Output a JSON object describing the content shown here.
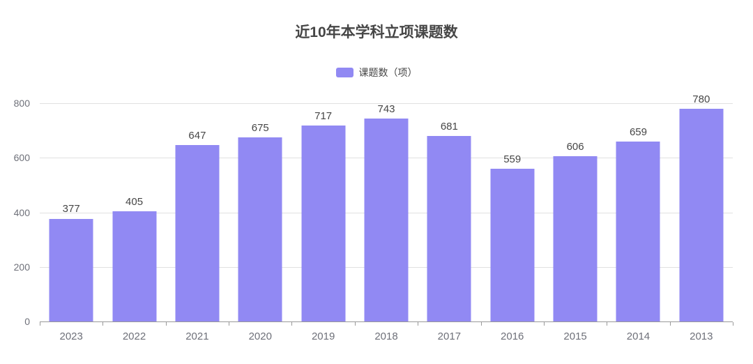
{
  "chart_data": {
    "type": "bar",
    "title": "近10年本学科立项课题数",
    "legend": {
      "label": "课题数（项）",
      "position": "top"
    },
    "categories": [
      "2023",
      "2022",
      "2021",
      "2020",
      "2019",
      "2018",
      "2017",
      "2016",
      "2015",
      "2014",
      "2013"
    ],
    "series": [
      {
        "name": "课题数（项）",
        "values": [
          377,
          405,
          647,
          675,
          717,
          743,
          681,
          559,
          606,
          659,
          780
        ]
      }
    ],
    "xlabel": "",
    "ylabel": "",
    "ylim": [
      0,
      800
    ],
    "yticks": [
      0,
      200,
      400,
      600,
      800
    ],
    "grid": true,
    "value_labels": true
  },
  "colors": {
    "bar": "#9189f3",
    "title_text": "#464646",
    "value_label_text": "#464646",
    "axis_label_text": "#6e7079",
    "gridline": "#e0e0e0",
    "axis_line": "#999999",
    "background": "#ffffff"
  }
}
